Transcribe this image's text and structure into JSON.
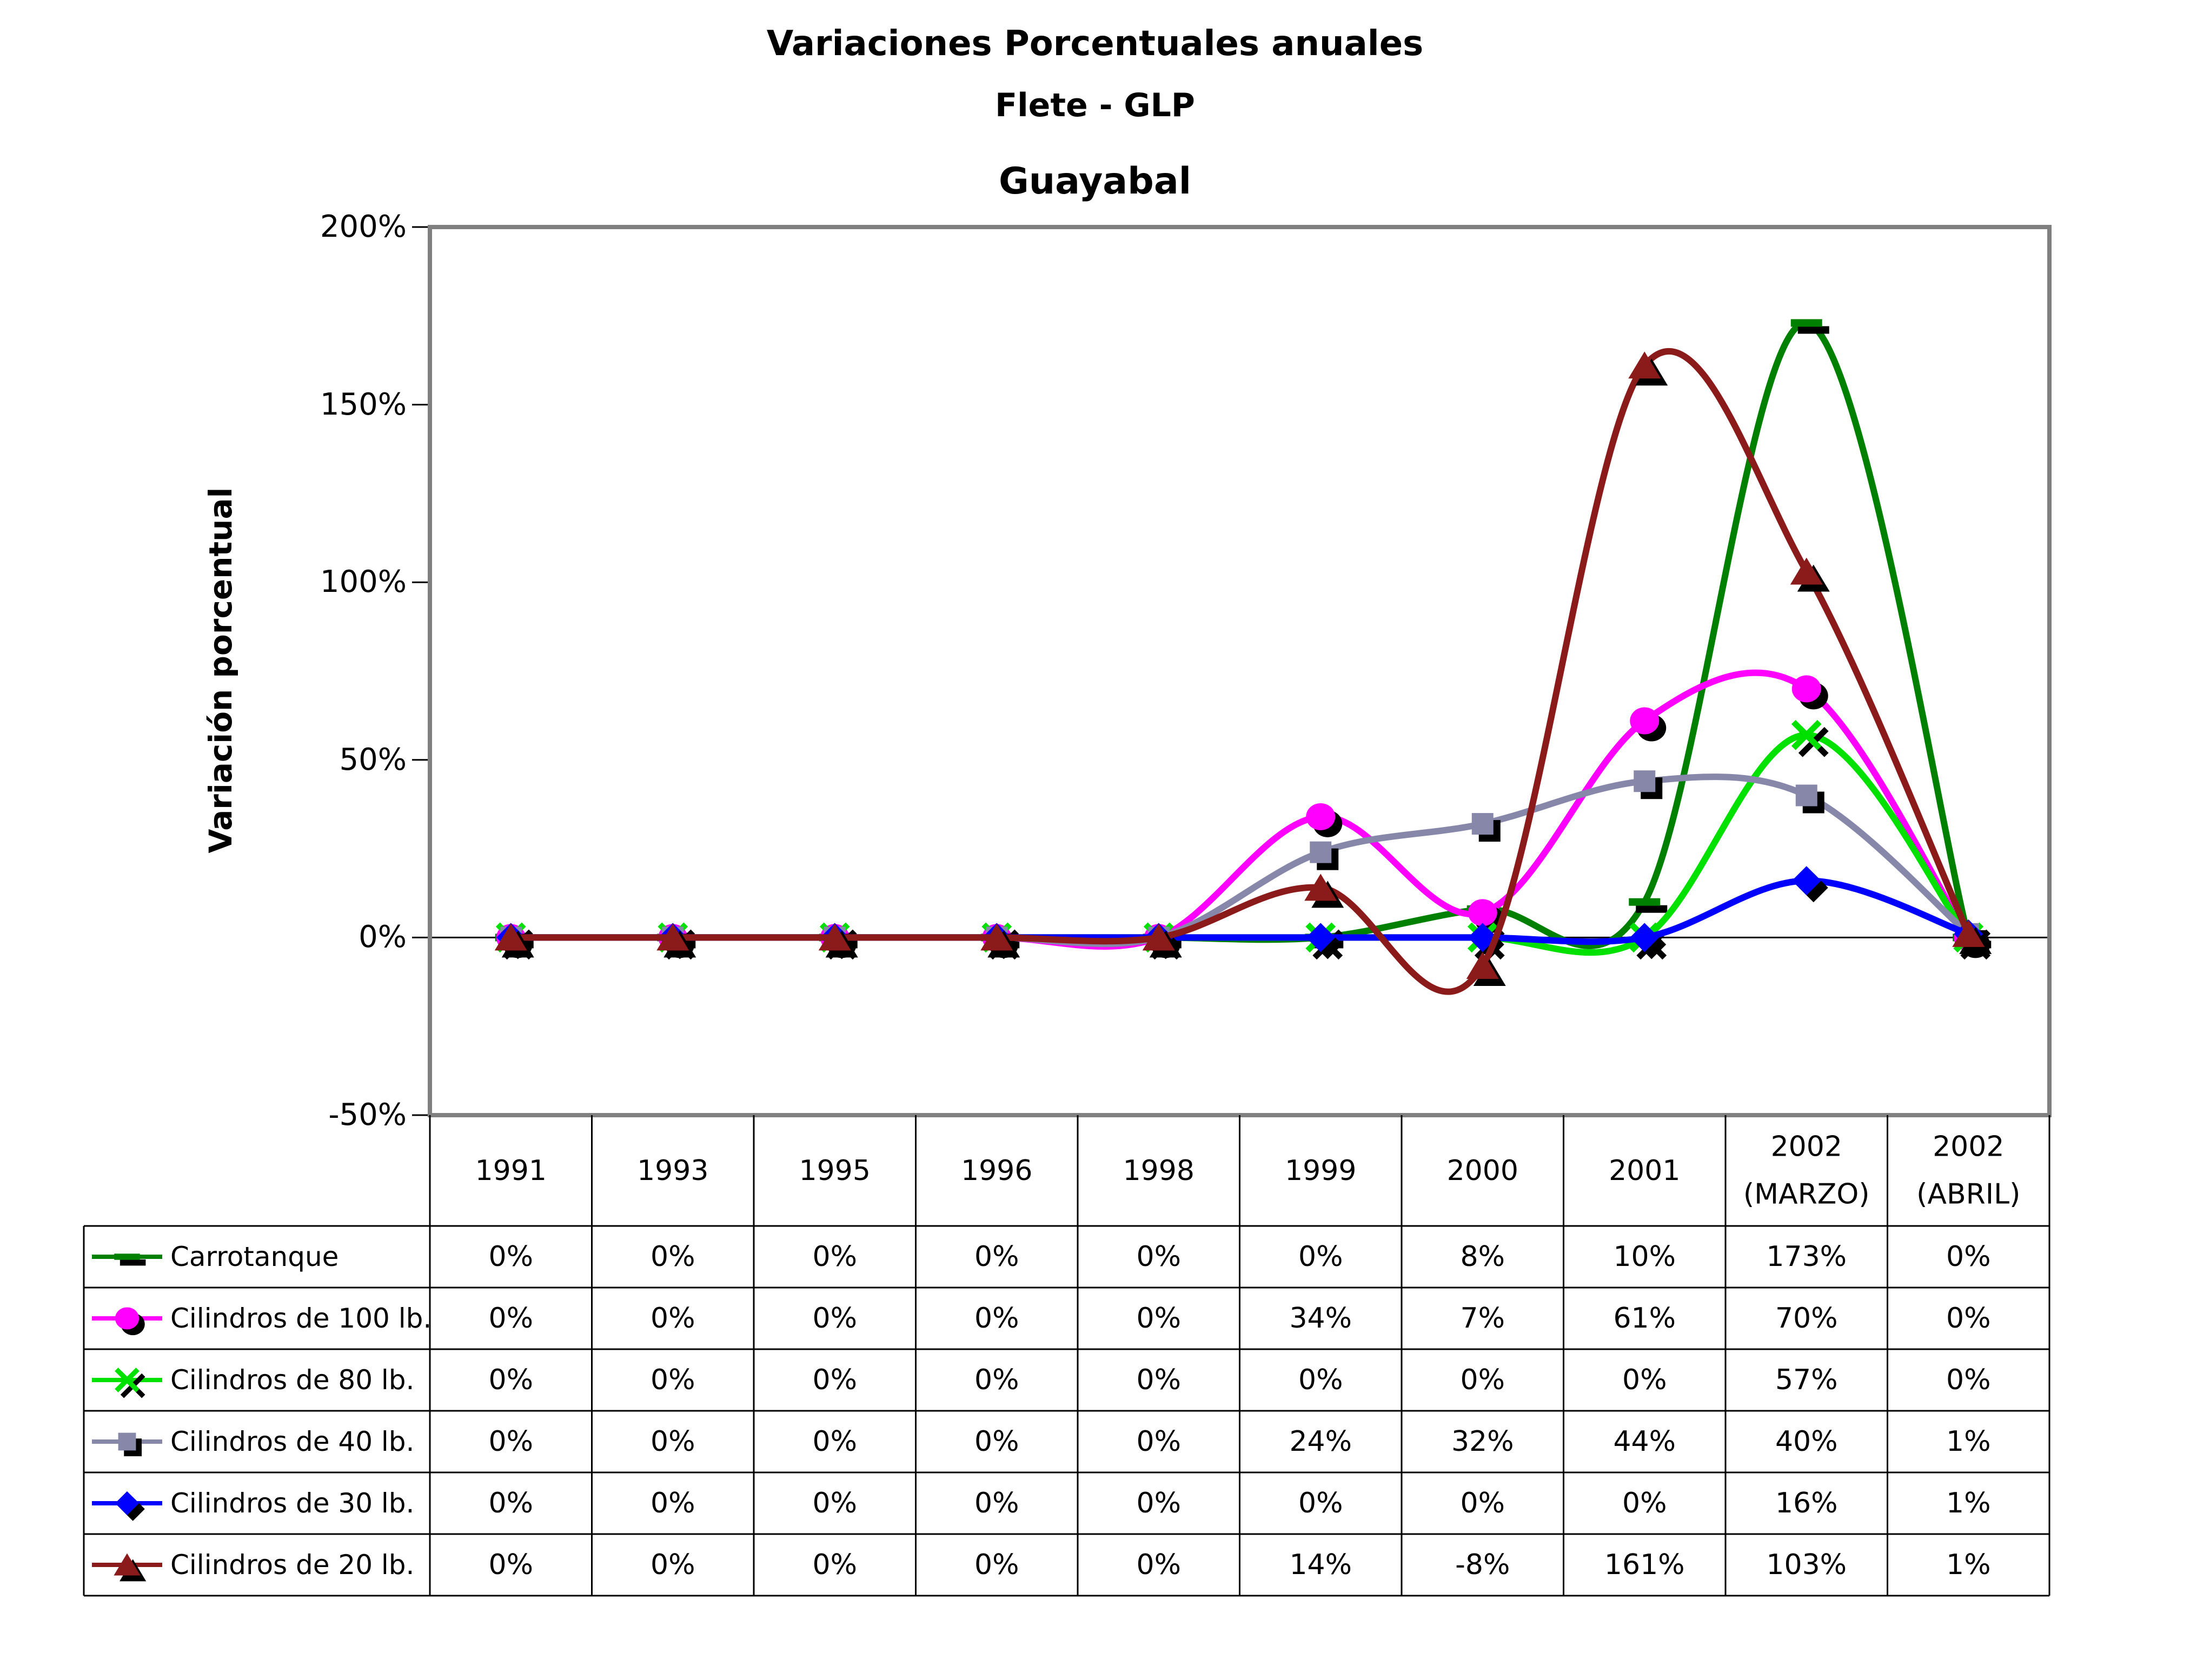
{
  "title": {
    "line1": "Variaciones Porcentuales anuales",
    "line2": "Flete - GLP",
    "line3": "Guayabal"
  },
  "y_axis": {
    "title": "Variación porcentual",
    "ticks": [
      "200%",
      "150%",
      "100%",
      "50%",
      "0%",
      "-50%"
    ],
    "min": -50,
    "max": 200,
    "step": 50
  },
  "chart_data": {
    "type": "line",
    "smooth": true,
    "grid": false,
    "legend_position": "table-left",
    "ylim": [
      -50,
      200
    ],
    "plot_border_color": "#808080",
    "zero_line_color": "#000000",
    "marker_shadow_color": "#000000",
    "categories": [
      "1991",
      "1993",
      "1995",
      "1996",
      "1998",
      "1999",
      "2000",
      "2001",
      "2002 (MARZO)",
      "2002 (ABRIL)"
    ],
    "category_lines": [
      [
        "1991"
      ],
      [
        "1993"
      ],
      [
        "1995"
      ],
      [
        "1996"
      ],
      [
        "1998"
      ],
      [
        "1999"
      ],
      [
        "2000"
      ],
      [
        "2001"
      ],
      [
        "2002",
        "(MARZO)"
      ],
      [
        "2002",
        "(ABRIL)"
      ]
    ],
    "series": [
      {
        "name": "Carrotanque",
        "color": "#008000",
        "marker": "dash",
        "values": [
          0,
          0,
          0,
          0,
          0,
          0,
          8,
          10,
          173,
          0
        ],
        "labels": [
          "0%",
          "0%",
          "0%",
          "0%",
          "0%",
          "0%",
          "8%",
          "10%",
          "173%",
          "0%"
        ]
      },
      {
        "name": "Cilindros de 100 lb.",
        "color": "#FF00FF",
        "marker": "circle",
        "values": [
          0,
          0,
          0,
          0,
          0,
          34,
          7,
          61,
          70,
          0
        ],
        "labels": [
          "0%",
          "0%",
          "0%",
          "0%",
          "0%",
          "34%",
          "7%",
          "61%",
          "70%",
          "0%"
        ]
      },
      {
        "name": "Cilindros de 80 lb.",
        "color": "#00E100",
        "marker": "x",
        "values": [
          0,
          0,
          0,
          0,
          0,
          0,
          0,
          0,
          57,
          0
        ],
        "labels": [
          "0%",
          "0%",
          "0%",
          "0%",
          "0%",
          "0%",
          "0%",
          "0%",
          "57%",
          "0%"
        ]
      },
      {
        "name": "Cilindros de 40 lb.",
        "color": "#8787AA",
        "marker": "square",
        "values": [
          0,
          0,
          0,
          0,
          0,
          24,
          32,
          44,
          40,
          1
        ],
        "labels": [
          "0%",
          "0%",
          "0%",
          "0%",
          "0%",
          "24%",
          "32%",
          "44%",
          "40%",
          "1%"
        ]
      },
      {
        "name": "Cilindros de 30 lb.",
        "color": "#0000FF",
        "marker": "diamond",
        "values": [
          0,
          0,
          0,
          0,
          0,
          0,
          0,
          0,
          16,
          1
        ],
        "labels": [
          "0%",
          "0%",
          "0%",
          "0%",
          "0%",
          "0%",
          "0%",
          "0%",
          "16%",
          "1%"
        ]
      },
      {
        "name": "Cilindros de 20 lb.",
        "color": "#8B1A1A",
        "marker": "triangle",
        "values": [
          0,
          0,
          0,
          0,
          0,
          14,
          -8,
          161,
          103,
          1
        ],
        "labels": [
          "0%",
          "0%",
          "0%",
          "0%",
          "0%",
          "14%",
          "-8%",
          "161%",
          "103%",
          "1%"
        ]
      }
    ]
  }
}
